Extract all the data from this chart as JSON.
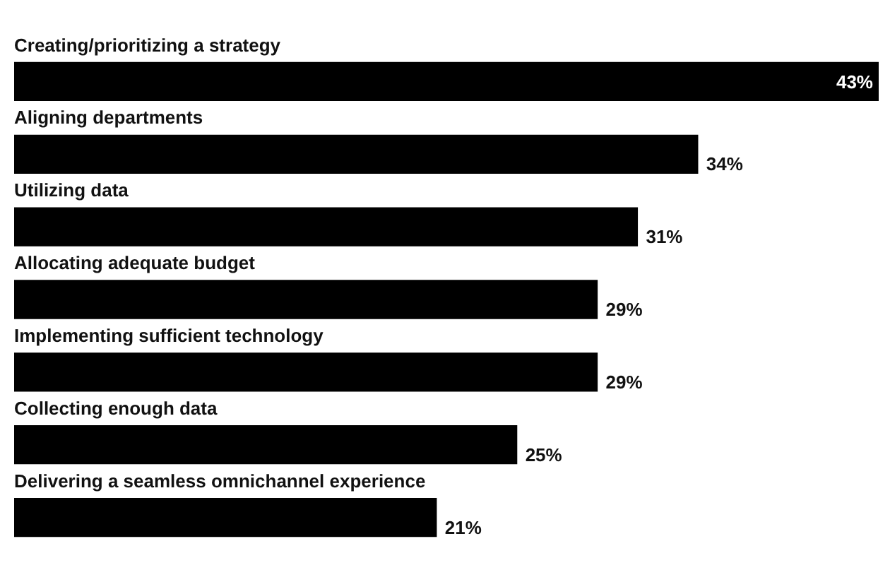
{
  "chart_data": {
    "type": "bar",
    "orientation": "horizontal",
    "categories": [
      "Creating/prioritizing a strategy",
      "Aligning departments",
      "Utilizing data",
      "Allocating adequate budget",
      "Implementing sufficient technology",
      "Collecting enough data",
      "Delivering a seamless omnichannel experience"
    ],
    "values": [
      43,
      34,
      31,
      29,
      29,
      25,
      21
    ],
    "value_labels": [
      "43%",
      "34%",
      "31%",
      "29%",
      "29%",
      "25%",
      "21%"
    ],
    "color": "#000000",
    "legend": false
  }
}
